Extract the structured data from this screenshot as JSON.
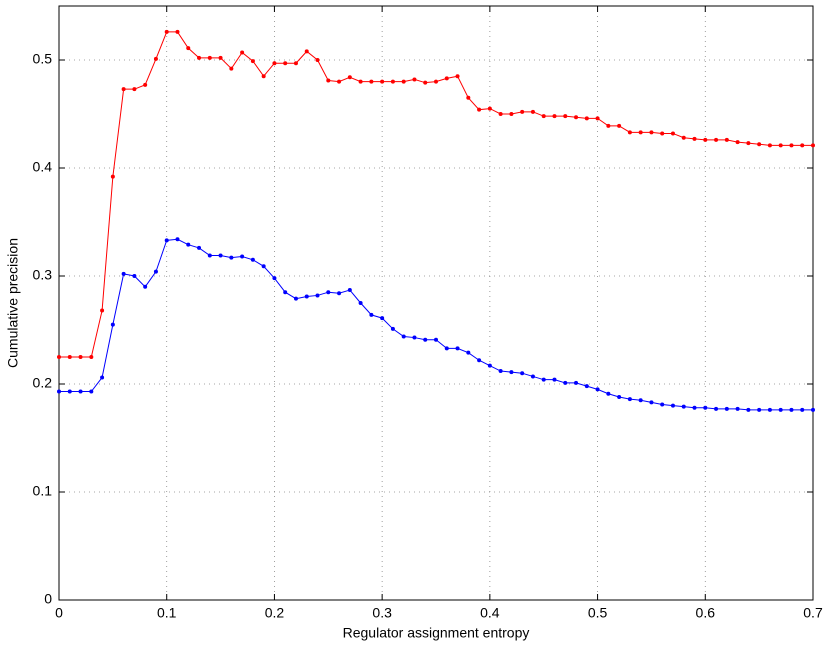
{
  "chart_data": {
    "type": "line",
    "xlabel": "Regulator assignment entropy",
    "ylabel": "Cumulative precision",
    "x": [
      0,
      0.01,
      0.02,
      0.03,
      0.04,
      0.05,
      0.06,
      0.07,
      0.08,
      0.09,
      0.1,
      0.11,
      0.12,
      0.13,
      0.14,
      0.15,
      0.16,
      0.17,
      0.18,
      0.19,
      0.2,
      0.21,
      0.22,
      0.23,
      0.24,
      0.25,
      0.26,
      0.27,
      0.28,
      0.29,
      0.3,
      0.31,
      0.32,
      0.33,
      0.34,
      0.35,
      0.36,
      0.37,
      0.38,
      0.39,
      0.4,
      0.41,
      0.42,
      0.43,
      0.44,
      0.45,
      0.46,
      0.47,
      0.48,
      0.49,
      0.5,
      0.51,
      0.52,
      0.53,
      0.54,
      0.55,
      0.56,
      0.57,
      0.58,
      0.59,
      0.6,
      0.61,
      0.62,
      0.63,
      0.64,
      0.65,
      0.66,
      0.67,
      0.68,
      0.69,
      0.7
    ],
    "series": [
      {
        "color": "#ff0000",
        "values": [
          0.225,
          0.225,
          0.225,
          0.225,
          0.268,
          0.392,
          0.473,
          0.473,
          0.477,
          0.501,
          0.526,
          0.526,
          0.511,
          0.502,
          0.502,
          0.502,
          0.492,
          0.507,
          0.499,
          0.485,
          0.497,
          0.497,
          0.497,
          0.508,
          0.5,
          0.481,
          0.48,
          0.484,
          0.48,
          0.48,
          0.48,
          0.48,
          0.48,
          0.482,
          0.479,
          0.48,
          0.483,
          0.485,
          0.465,
          0.454,
          0.455,
          0.45,
          0.45,
          0.452,
          0.452,
          0.448,
          0.448,
          0.448,
          0.447,
          0.446,
          0.446,
          0.439,
          0.439,
          0.433,
          0.433,
          0.433,
          0.432,
          0.432,
          0.428,
          0.427,
          0.426,
          0.426,
          0.426,
          0.424,
          0.423,
          0.422,
          0.421,
          0.421,
          0.421,
          0.421,
          0.421
        ]
      },
      {
        "color": "#0000ff",
        "values": [
          0.193,
          0.193,
          0.193,
          0.193,
          0.206,
          0.255,
          0.302,
          0.3,
          0.29,
          0.304,
          0.333,
          0.334,
          0.329,
          0.326,
          0.319,
          0.319,
          0.317,
          0.318,
          0.315,
          0.309,
          0.298,
          0.285,
          0.279,
          0.281,
          0.282,
          0.285,
          0.284,
          0.287,
          0.275,
          0.264,
          0.261,
          0.251,
          0.244,
          0.243,
          0.241,
          0.241,
          0.233,
          0.233,
          0.229,
          0.222,
          0.217,
          0.212,
          0.211,
          0.21,
          0.207,
          0.204,
          0.204,
          0.201,
          0.201,
          0.198,
          0.195,
          0.191,
          0.188,
          0.186,
          0.185,
          0.183,
          0.181,
          0.18,
          0.179,
          0.178,
          0.178,
          0.177,
          0.177,
          0.177,
          0.176,
          0.176,
          0.176,
          0.176,
          0.176,
          0.176,
          0.176
        ]
      }
    ],
    "xlim": [
      0,
      0.7
    ],
    "xticks": [
      0,
      0.1,
      0.2,
      0.3,
      0.4,
      0.5,
      0.6,
      0.7
    ],
    "ylim": [
      0,
      0.55
    ],
    "yticks": [
      0,
      0.1,
      0.2,
      0.3,
      0.4,
      0.5
    ],
    "grid": true
  }
}
